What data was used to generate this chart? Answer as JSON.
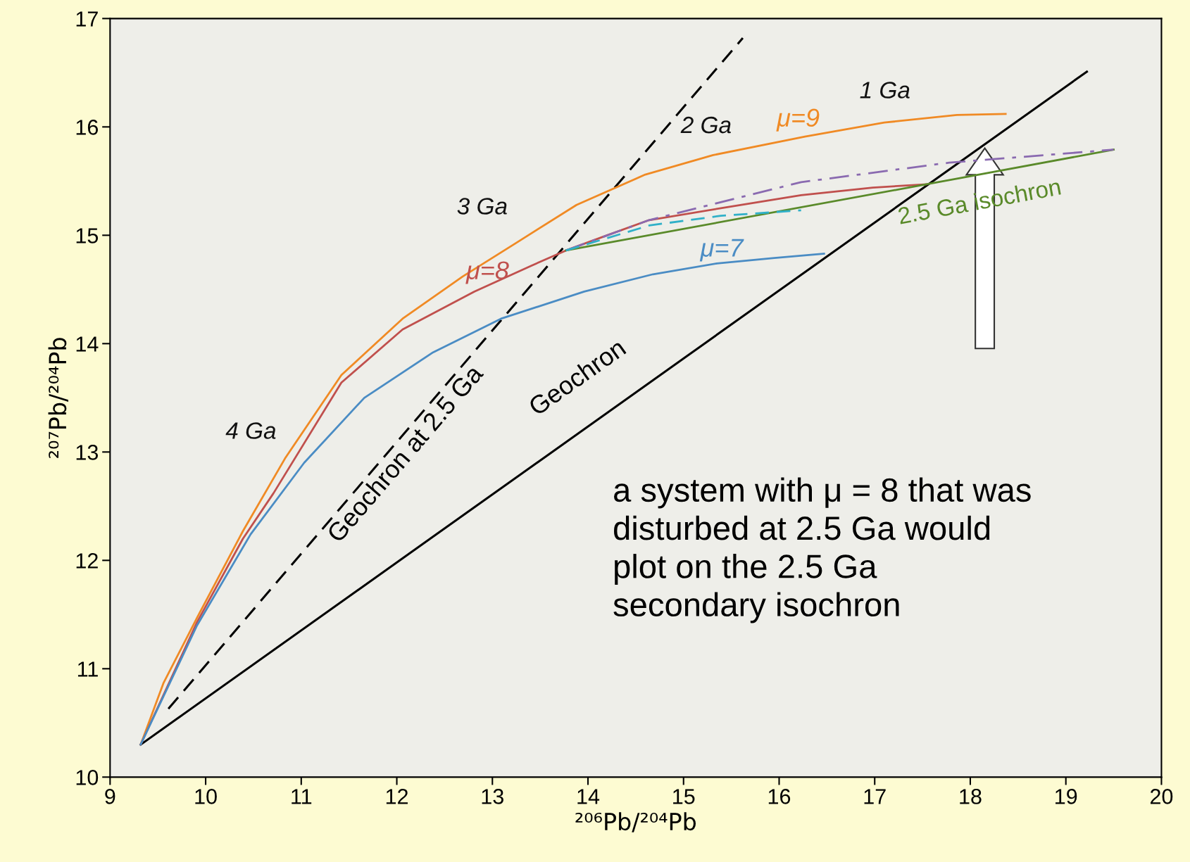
{
  "chart_data": {
    "type": "line",
    "xlabel": "²⁰⁶Pb/²⁰⁴Pb",
    "ylabel": "²⁰⁷Pb/²⁰⁴Pb",
    "xlim": [
      9,
      20
    ],
    "ylim": [
      10,
      17
    ],
    "xticks": [
      9,
      10,
      11,
      12,
      13,
      14,
      15,
      16,
      17,
      18,
      19,
      20
    ],
    "yticks": [
      10,
      11,
      12,
      13,
      14,
      15,
      16,
      17
    ],
    "grid": false,
    "legend": false,
    "marker": "none",
    "series": [
      {
        "name": "Geochron",
        "color": "#000000",
        "line_style": "solid",
        "x": [
          9.32,
          19.22
        ],
        "values": [
          10.3,
          16.51
        ]
      },
      {
        "name": "Geochron at 2.5 Ga",
        "color": "#000000",
        "line_style": "dashed",
        "x": [
          9.61,
          15.62
        ],
        "values": [
          10.63,
          16.82
        ]
      },
      {
        "name": "μ=9",
        "color": "#f08a24",
        "line_style": "solid",
        "x": [
          9.32,
          9.56,
          9.91,
          10.39,
          10.83,
          11.42,
          12.06,
          12.69,
          13.25,
          13.88,
          14.6,
          15.31,
          16.27,
          17.1,
          17.86,
          18.37
        ],
        "values": [
          10.3,
          10.87,
          11.47,
          12.27,
          12.94,
          13.71,
          14.23,
          14.62,
          14.93,
          15.28,
          15.56,
          15.74,
          15.91,
          16.04,
          16.11,
          16.12
        ]
      },
      {
        "name": "μ=8",
        "color": "#c0504d",
        "line_style": "solid",
        "x": [
          9.32,
          9.91,
          10.39,
          10.71,
          11.42,
          12.06,
          12.81,
          13.41,
          13.77,
          14.2,
          14.64,
          15.39,
          16.23,
          16.98,
          17.54
        ],
        "values": [
          10.3,
          11.43,
          12.2,
          12.62,
          13.64,
          14.13,
          14.48,
          14.72,
          14.86,
          15.0,
          15.14,
          15.25,
          15.37,
          15.44,
          15.47
        ]
      },
      {
        "name": "μ=7",
        "color": "#4a8cc4",
        "line_style": "solid",
        "x": [
          9.32,
          9.91,
          10.47,
          11.03,
          11.66,
          12.38,
          13.09,
          13.96,
          14.68,
          15.35,
          15.95,
          16.47
        ],
        "values": [
          10.3,
          11.4,
          12.24,
          12.9,
          13.5,
          13.92,
          14.23,
          14.48,
          14.64,
          14.74,
          14.79,
          14.83
        ]
      },
      {
        "name": "2.5 Ga isochron",
        "color": "#5a8a2a",
        "line_style": "solid",
        "x": [
          13.77,
          17.54,
          19.5
        ],
        "values": [
          14.86,
          15.47,
          15.79
        ]
      },
      {
        "color": "#8a6ab0",
        "line_style": "dashdot",
        "x": [
          13.77,
          14.64,
          16.23,
          17.78,
          19.5
        ],
        "values": [
          14.86,
          15.14,
          15.49,
          15.67,
          15.79
        ]
      },
      {
        "color": "#30b0c8",
        "line_style": "dashed",
        "x": [
          13.77,
          14.64,
          15.39,
          16.23
        ],
        "values": [
          14.86,
          15.09,
          15.18,
          15.23
        ]
      }
    ],
    "annotations": [
      "4 Ga",
      "3 Ga",
      "2 Ga",
      "1 Ga",
      "a system with μ = 8 that was disturbed at 2.5 Ga would plot on the 2.5 Ga secondary isochron"
    ]
  }
}
